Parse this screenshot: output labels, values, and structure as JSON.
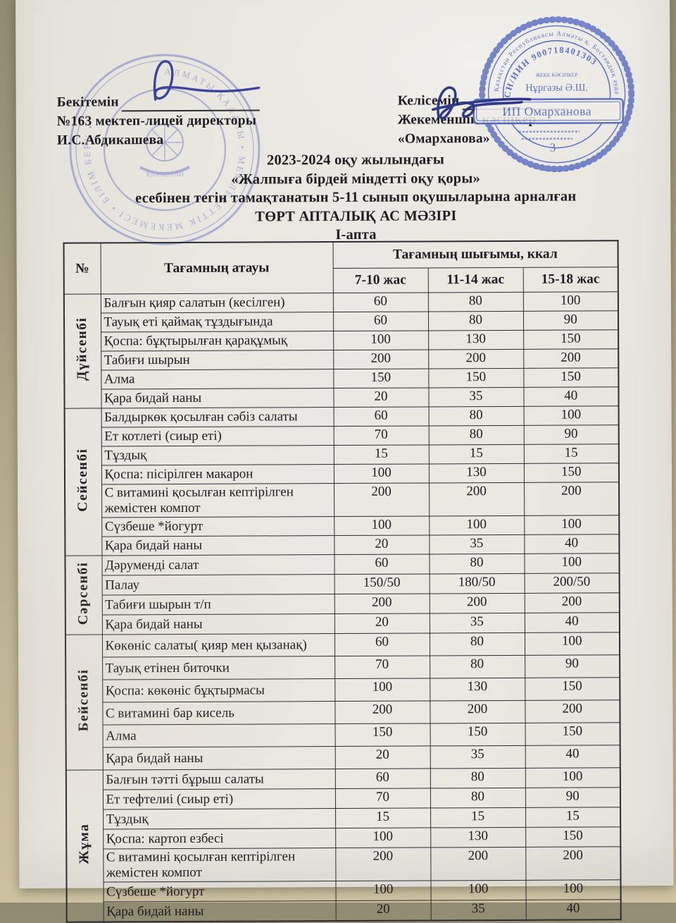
{
  "approval_left": {
    "line1": "Бекітемін",
    "line2": "№163 мектеп-лицей директоры",
    "line3": "И.С.Абдикашева"
  },
  "approval_right": {
    "line1": "Келісемін",
    "line2": "Жекеменшік кәсіпкер",
    "line3": "«Омарханова»"
  },
  "title_lines": [
    "2023-2024 оқу жылындағы",
    "«Жалпыға бірдей міндетті оқу қоры»",
    "есебінен тегін тамақтанатын 5-11 сынып оқушыларына арналған",
    "ТӨРТ АПТАЛЫҚ АС МӘЗІРІ",
    "І-апта"
  ],
  "table": {
    "header": {
      "num": "№",
      "name": "Тағамның атауы",
      "output": "Тағамның шығымы, ккал",
      "ages": [
        "7-10 жас",
        "11-14 жас",
        "15-18 жас"
      ]
    },
    "days": [
      {
        "label": "Дүйсенбі",
        "rows": [
          {
            "name": "Балғын қияр салатын (кесілген)",
            "values": [
              "60",
              "80",
              "100"
            ]
          },
          {
            "name": "Тауық еті қаймақ тұздығында",
            "values": [
              "60",
              "80",
              "90"
            ]
          },
          {
            "name": "Қоспа: бұқтырылған қарақұмық",
            "values": [
              "100",
              "130",
              "150"
            ]
          },
          {
            "name": "Табиғи шырын",
            "values": [
              "200",
              "200",
              "200"
            ]
          },
          {
            "name": "Алма",
            "values": [
              "150",
              "150",
              "150"
            ]
          },
          {
            "name": "Қара бидай наны",
            "values": [
              "20",
              "35",
              "40"
            ]
          }
        ]
      },
      {
        "label": "Сейсенбі",
        "rows": [
          {
            "name": "Балдыркөк қосылған сәбіз салаты",
            "values": [
              "60",
              "80",
              "100"
            ]
          },
          {
            "name": "Ет котлеті (сиыр еті)",
            "values": [
              "70",
              "80",
              "90"
            ]
          },
          {
            "name": "Тұздық",
            "values": [
              "15",
              "15",
              "15"
            ]
          },
          {
            "name": "Қоспа: пісірілген макарон",
            "values": [
              "100",
              "130",
              "150"
            ]
          },
          {
            "name": "С витамині қосылған кептірілген жемістен компот",
            "values": [
              "200",
              "200",
              "200"
            ]
          },
          {
            "name": "Сүзбеше *йогурт",
            "values": [
              "100",
              "100",
              "100"
            ]
          },
          {
            "name": "Қара бидай наны",
            "values": [
              "20",
              "35",
              "40"
            ]
          }
        ]
      },
      {
        "label": "Сәрсенбі",
        "rows": [
          {
            "name": "Дәруменді салат",
            "values": [
              "60",
              "80",
              "100"
            ]
          },
          {
            "name": "Палау",
            "values": [
              "150/50",
              "180/50",
              "200/50"
            ]
          },
          {
            "name": "Табиғи шырын т/п",
            "values": [
              "200",
              "200",
              "200"
            ]
          },
          {
            "name": "Қара бидай наны",
            "values": [
              "20",
              "35",
              "40"
            ]
          }
        ]
      },
      {
        "label": "Бейсенбі",
        "rows": [
          {
            "name": "Көкөніс салаты( қияр мен қызанақ)",
            "values": [
              "60",
              "80",
              "100"
            ]
          },
          {
            "name": "Тауық етінен биточки",
            "values": [
              "70",
              "80",
              "90"
            ]
          },
          {
            "name": "Қоспа: көкөніс бұқтырмасы",
            "values": [
              "100",
              "130",
              "150"
            ]
          },
          {
            "name": "С витамині бар кисель",
            "values": [
              "200",
              "200",
              "200"
            ]
          },
          {
            "name": "Алма",
            "values": [
              "150",
              "150",
              "150"
            ]
          },
          {
            "name": "Қара бидай наны",
            "values": [
              "20",
              "35",
              "40"
            ]
          }
        ]
      },
      {
        "label": "Жұма",
        "rows": [
          {
            "name": "Балғын тәтті бұрыш салаты",
            "values": [
              "60",
              "80",
              "100"
            ]
          },
          {
            "name": "Ет тефтелиі (сиыр еті)",
            "values": [
              "70",
              "80",
              "90"
            ]
          },
          {
            "name": "Тұздық",
            "values": [
              "15",
              "15",
              "15"
            ]
          },
          {
            "name": "Қоспа:  картоп езбесі",
            "values": [
              "100",
              "130",
              "150"
            ]
          },
          {
            "name": "С витамині қосылған кептірілген жемістен компот",
            "values": [
              "200",
              "200",
              "200"
            ]
          },
          {
            "name": "Сүзбеше *йогурт",
            "values": [
              "100",
              "100",
              "100"
            ]
          },
          {
            "name": "Қара бидай наны",
            "values": [
              "20",
              "35",
              "40"
            ]
          }
        ]
      }
    ]
  },
  "stamps": {
    "school_seal": {
      "ring_text": "АЛМАТЫ ҚАЛАСЫ • МЕМЛЕКЕТТІК МЕКЕМЕСІ • БІЛІМ БЕРУ •",
      "center_text": "ҚАЗАҚСТАН"
    },
    "entrepreneur_seal": {
      "ring_text": "Қазақстан Республикасы Алматы қ. Бостандық ауданы",
      "iin_text": "ЖСН/ИИН 900718401303",
      "role_text": "ЖЕКЕ КӘСІПКЕР",
      "person_text": "Нұргазы Ә.Ш.",
      "box_text": "ИП Омарханова",
      "number_text": "3"
    }
  },
  "colors": {
    "stamp_blue": "#4d62c0",
    "ink_blue": "#2b3796",
    "paper": "#eae7e1",
    "backdrop_tan": "#b4aa8e",
    "table_line": "#2c2c33"
  }
}
